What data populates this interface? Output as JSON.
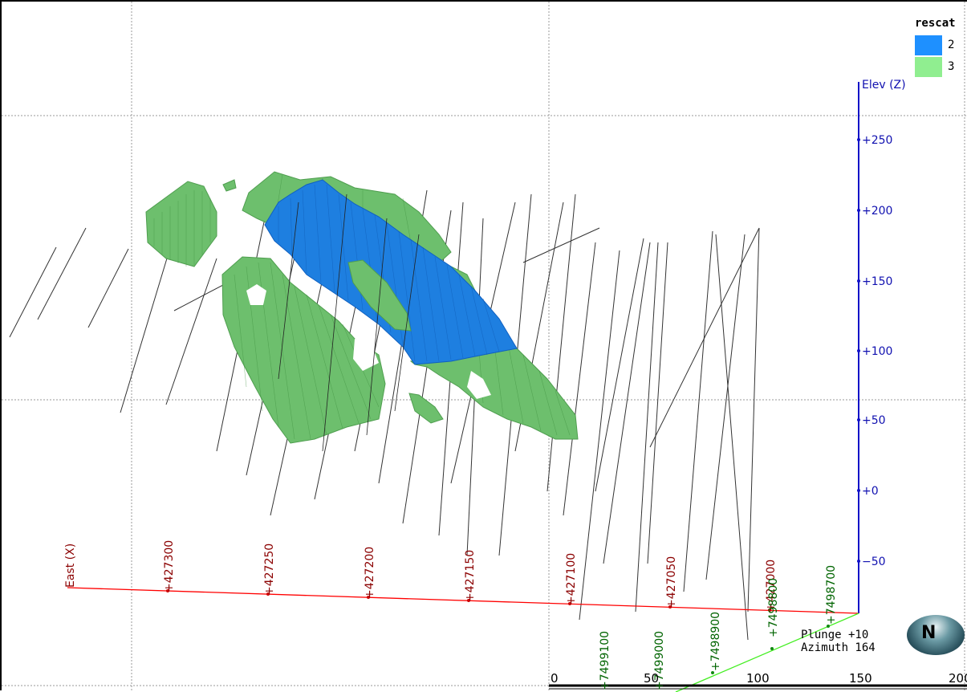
{
  "legend": {
    "title": "rescat",
    "items": [
      {
        "label": "2",
        "color": "#1e90ff"
      },
      {
        "label": "3",
        "color": "#90ee90"
      }
    ]
  },
  "axes": {
    "elevation": {
      "label": "Elev (Z)",
      "color": "#1010b0",
      "ticks": [
        "+250",
        "+200",
        "+150",
        "+100",
        "+50",
        "+0",
        "−50"
      ]
    },
    "east": {
      "label": "East (X)",
      "color": "#8b0000",
      "ticks": [
        "+427300",
        "+427250",
        "+427200",
        "+427150",
        "+427100",
        "+427050",
        "+427000"
      ]
    },
    "north": {
      "color": "#006400",
      "ticks": [
        "+7498700",
        "+7498800",
        "+7498900",
        "+7499000",
        "+7499100"
      ]
    },
    "scale_bar": {
      "ticks": [
        "0",
        "50",
        "100",
        "150",
        "200"
      ]
    }
  },
  "view": {
    "plunge": "Plunge +10",
    "azimuth": "Azimuth 164"
  },
  "compass": {
    "label": "N"
  },
  "colors": {
    "domain_blue": "#1e90ff",
    "domain_green": "#90ee90",
    "drillhole": "#333333",
    "grid": "#9a9a9a",
    "east_axis": "#ff0000",
    "north_axis": "#33ff00"
  }
}
